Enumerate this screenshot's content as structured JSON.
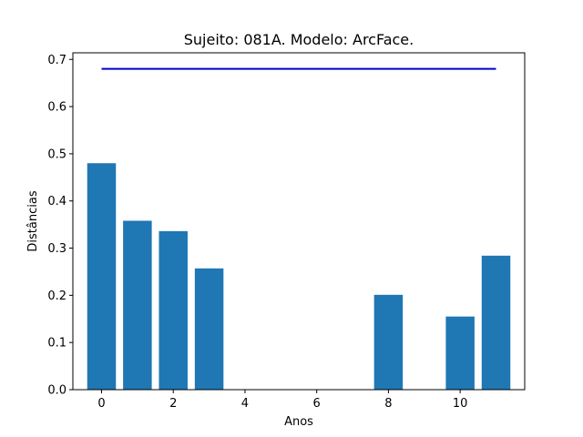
{
  "chart_data": {
    "type": "bar",
    "title": "Sujeito: 081A. Modelo: ArcFace.",
    "xlabel": "Anos",
    "ylabel": "Distâncias",
    "x": [
      0,
      1,
      2,
      3,
      8,
      10,
      11
    ],
    "values": [
      0.48,
      0.358,
      0.336,
      0.257,
      0.201,
      0.155,
      0.284
    ],
    "bar_color": "#1f77b4",
    "threshold": {
      "y": 0.68,
      "x_range": [
        0,
        11
      ],
      "color": "#0000cc"
    },
    "xlim": [
      -0.8,
      11.8
    ],
    "ylim": [
      0,
      0.714
    ],
    "xticks": [
      0,
      2,
      4,
      6,
      8,
      10
    ],
    "xtick_labels": [
      "0",
      "2",
      "4",
      "6",
      "8",
      "10"
    ],
    "yticks": [
      0.0,
      0.1,
      0.2,
      0.3,
      0.4,
      0.5,
      0.6,
      0.7
    ],
    "ytick_labels": [
      "0.0",
      "0.1",
      "0.2",
      "0.3",
      "0.4",
      "0.5",
      "0.6",
      "0.7"
    ],
    "grid": false,
    "legend": "none"
  }
}
